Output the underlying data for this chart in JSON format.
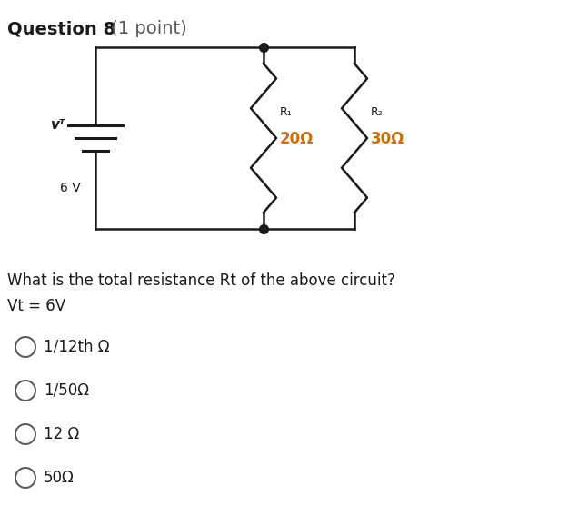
{
  "title": "Question 8",
  "title_weight": "bold",
  "title_color": "#1a1a1a",
  "title_suffix": " (1 point)",
  "title_suffix_color": "#555555",
  "question_text": "What is the total resistance Rt of the above circuit?",
  "vt_label": "Vt = 6V",
  "options": [
    "1/12th Ω",
    "1/50Ω",
    "12 Ω",
    "50Ω"
  ],
  "vt_symbol": "vᵀ",
  "battery_label": "6 V",
  "r1_label": "R₁",
  "r1_value": "20Ω",
  "r2_label": "R₂",
  "r2_value": "30Ω",
  "r_value_color": "#c87000",
  "bg_color": "#ffffff",
  "line_color": "#1a1a1a",
  "text_color": "#1a1a1a",
  "gray_color": "#555555"
}
